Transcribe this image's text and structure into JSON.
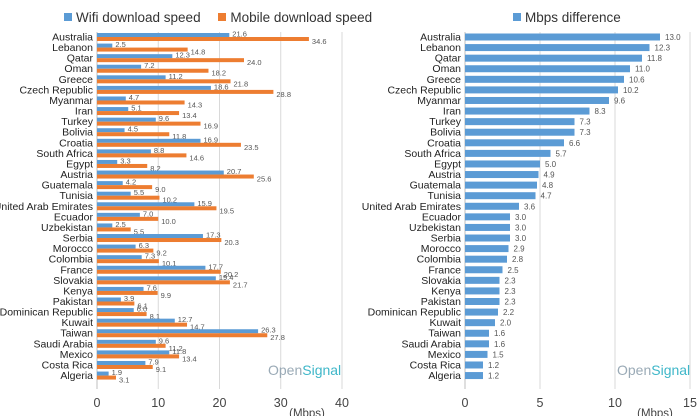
{
  "colors": {
    "wifi": "#5b9bd5",
    "mobile": "#ed7d31",
    "difference": "#5b9bd5",
    "grid": "#d9d9d9",
    "axis": "#bfbfbf",
    "label": "#222222",
    "value": "#555555",
    "watermark_open": "#9aaab6",
    "watermark_signal": "#3fb7c9"
  },
  "watermark": {
    "open": "Open",
    "signal": "Signal"
  },
  "chart_data": [
    {
      "type": "bar",
      "orientation": "horizontal",
      "legend_position": "top",
      "grid": true,
      "xlabel": "(Mbps)",
      "xlim": [
        0,
        40
      ],
      "xticks": [
        "0",
        "10",
        "20",
        "30",
        "40"
      ],
      "categories": [
        "Australia",
        "Lebanon",
        "Qatar",
        "Oman",
        "Greece",
        "Czech Republic",
        "Myanmar",
        "Iran",
        "Turkey",
        "Bolivia",
        "Croatia",
        "South Africa",
        "Egypt",
        "Austria",
        "Guatemala",
        "Tunisia",
        "United Arab Emirates",
        "Ecuador",
        "Uzbekistan",
        "Serbia",
        "Morocco",
        "Colombia",
        "France",
        "Slovakia",
        "Kenya",
        "Pakistan",
        "Dominican Republic",
        "Kuwait",
        "Taiwan",
        "Saudi Arabia",
        "Mexico",
        "Costa Rica",
        "Algeria"
      ],
      "series": [
        {
          "name": "Wifi download speed",
          "values": [
            21.6,
            2.5,
            12.3,
            7.2,
            11.2,
            18.6,
            4.7,
            5.1,
            9.6,
            4.5,
            16.9,
            8.8,
            3.3,
            20.7,
            4.2,
            5.5,
            15.9,
            7.0,
            2.5,
            17.3,
            6.3,
            7.3,
            17.7,
            19.4,
            7.6,
            3.9,
            6.0,
            12.7,
            26.3,
            9.6,
            11.8,
            7.9,
            1.9
          ],
          "labels": [
            "21.6",
            "2.5",
            "12.3",
            "7.2",
            "11.2",
            "18.6",
            "4.7",
            "5.1",
            "9.6",
            "4.5",
            "16.9",
            "8.8",
            "3.3",
            "20.7",
            "4.2",
            "5.5",
            "15.9",
            "7.0",
            "2.5",
            "17.3",
            "6.3",
            "7.3",
            "17.7",
            "19.4",
            "7.6",
            "3.9",
            "6.0",
            "12.7",
            "26.3",
            "9.6",
            "11.8",
            "7.9",
            "1.9"
          ]
        },
        {
          "name": "Mobile download speed",
          "values": [
            34.6,
            14.8,
            24.0,
            18.2,
            21.8,
            28.8,
            14.3,
            13.4,
            16.9,
            11.8,
            23.5,
            14.6,
            8.2,
            25.6,
            9.0,
            10.2,
            19.5,
            10.0,
            5.5,
            20.3,
            9.2,
            10.1,
            20.2,
            21.7,
            9.9,
            6.1,
            8.1,
            14.7,
            27.8,
            11.2,
            13.4,
            9.1,
            3.1
          ],
          "labels": [
            "34.6",
            "14.8",
            "24.0",
            "18.2",
            "21.8",
            "28.8",
            "14.3",
            "13.4",
            "16.9",
            "11.8",
            "23.5",
            "14.6",
            "8.2",
            "25.6",
            "9.0",
            "10.2",
            "19.5",
            "10.0",
            "5.5",
            "20.3",
            "9.2",
            "10.1",
            "20.2",
            "21.7",
            "9.9",
            "6.1",
            "8.1",
            "14.7",
            "27.8",
            "11.2",
            "13.4",
            "9.1",
            "3.1"
          ]
        }
      ]
    },
    {
      "type": "bar",
      "orientation": "horizontal",
      "legend_position": "top",
      "grid": true,
      "xlabel": "(Mbps)",
      "xlim": [
        0,
        15
      ],
      "xticks": [
        "0",
        "5",
        "10",
        "15"
      ],
      "categories": [
        "Australia",
        "Lebanon",
        "Qatar",
        "Oman",
        "Greece",
        "Czech Republic",
        "Myanmar",
        "Iran",
        "Turkey",
        "Bolivia",
        "Croatia",
        "South Africa",
        "Egypt",
        "Austria",
        "Guatemala",
        "Tunisia",
        "United Arab Emirates",
        "Ecuador",
        "Uzbekistan",
        "Serbia",
        "Morocco",
        "Colombia",
        "France",
        "Slovakia",
        "Kenya",
        "Pakistan",
        "Dominican Republic",
        "Kuwait",
        "Taiwan",
        "Saudi Arabia",
        "Mexico",
        "Costa Rica",
        "Algeria"
      ],
      "series": [
        {
          "name": "Mbps difference",
          "values": [
            13.0,
            12.3,
            11.8,
            11.0,
            10.6,
            10.2,
            9.6,
            8.3,
            7.3,
            7.3,
            6.6,
            5.7,
            5.0,
            4.9,
            4.8,
            4.7,
            3.6,
            3.0,
            3.0,
            3.0,
            2.9,
            2.8,
            2.5,
            2.3,
            2.3,
            2.3,
            2.2,
            2.0,
            1.6,
            1.6,
            1.5,
            1.2,
            1.2
          ],
          "labels": [
            "13.0",
            "12.3",
            "11.8",
            "11.0",
            "10.6",
            "10.2",
            "9.6",
            "8.3",
            "7.3",
            "7.3",
            "6.6",
            "5.7",
            "5.0",
            "4.9",
            "4.8",
            "4.7",
            "3.6",
            "3.0",
            "3.0",
            "3.0",
            "2.9",
            "2.8",
            "2.5",
            "2.3",
            "2.3",
            "2.3",
            "2.2",
            "2.0",
            "1.6",
            "1.6",
            "1.5",
            "1.2",
            "1.2"
          ]
        }
      ]
    }
  ]
}
